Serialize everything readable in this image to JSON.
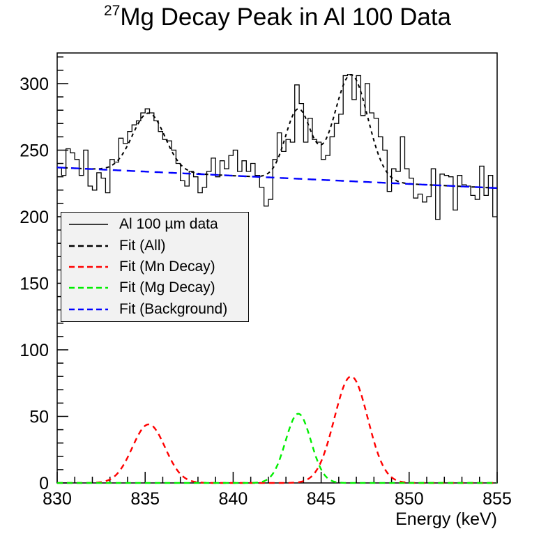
{
  "chart": {
    "title_superscript": "27",
    "title_text": "Mg Decay Peak in Al 100 Data",
    "xlabel": "Energy (keV)"
  },
  "chart_data": {
    "type": "histogram-with-fit-lines",
    "x_range": [
      830,
      855
    ],
    "y_range": [
      0,
      323
    ],
    "x_ticks_major": [
      830,
      835,
      840,
      845,
      850,
      855
    ],
    "x_tick_minor_step": 1,
    "y_ticks_major": [
      0,
      50,
      100,
      150,
      200,
      250,
      300
    ],
    "y_tick_minor_step": 10,
    "grid": false,
    "legend_position": "middle-left",
    "histogram": {
      "name": "Al 100 µm data",
      "color": "#000000",
      "bin_start": 830,
      "bin_width": 0.25,
      "counts": [
        237,
        231,
        251,
        248,
        243,
        231,
        250,
        223,
        220,
        233,
        229,
        218,
        243,
        241,
        259,
        255,
        264,
        269,
        272,
        278,
        281,
        278,
        272,
        264,
        258,
        257,
        250,
        240,
        227,
        223,
        234,
        230,
        218,
        222,
        234,
        244,
        230,
        242,
        236,
        246,
        250,
        234,
        242,
        234,
        240,
        231,
        222,
        208,
        213,
        243,
        263,
        249,
        258,
        256,
        299,
        285,
        256,
        274,
        258,
        256,
        243,
        246,
        260,
        270,
        277,
        306,
        307,
        288,
        306,
        276,
        300,
        278,
        274,
        260,
        250,
        219,
        236,
        234,
        260,
        236,
        229,
        214,
        217,
        211,
        215,
        236,
        198,
        232,
        231,
        230,
        205,
        231,
        224,
        223,
        216,
        213,
        238,
        216,
        231,
        200
      ]
    },
    "fits": {
      "all": {
        "label": "Fit (All)",
        "color": "#000000",
        "type": "background_plus_all_peaks"
      },
      "mn_decay": {
        "label": "Fit (Mn Decay)",
        "color": "#ff0000",
        "type": "gaussians",
        "peaks": [
          {
            "center": 835.2,
            "height": 44,
            "sigma": 0.93
          },
          {
            "center": 846.7,
            "height": 80,
            "sigma": 0.95
          }
        ]
      },
      "mg_decay": {
        "label": "Fit (Mg Decay)",
        "color": "#00ee00",
        "type": "gaussians",
        "peaks": [
          {
            "center": 843.7,
            "height": 52,
            "sigma": 0.72
          }
        ]
      },
      "background": {
        "label": "Fit (Background)",
        "color": "#0000ff",
        "type": "linear",
        "value_at_830": 237,
        "value_at_855": 221.5
      }
    },
    "legend": {
      "fill": "#f2f2f2",
      "entries": [
        {
          "label": "Al 100 µm data",
          "color": "#000000",
          "style": "solid"
        },
        {
          "label": "Fit (All)",
          "color": "#000000",
          "style": "dashed"
        },
        {
          "label": "Fit (Mn Decay)",
          "color": "#ff0000",
          "style": "dashed"
        },
        {
          "label": "Fit (Mg Decay)",
          "color": "#00ee00",
          "style": "dashed"
        },
        {
          "label": "Fit (Background)",
          "color": "#0000ff",
          "style": "dashed"
        }
      ]
    }
  }
}
